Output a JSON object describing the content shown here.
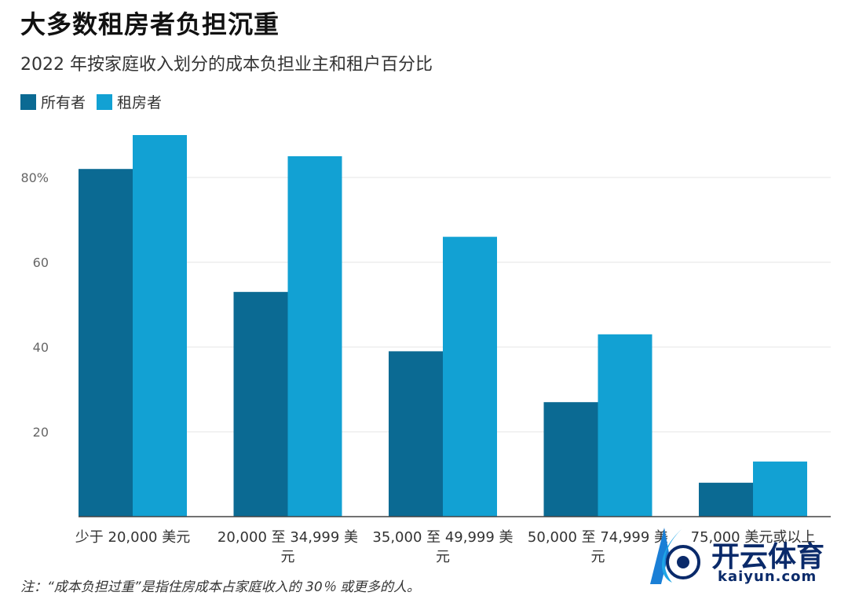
{
  "title": "大多数租房者负担沉重",
  "subtitle": "2022 年按家庭收入划分的成本负担业主和租户百分比",
  "note": "注：“成本负担过重”是指住房成本占家庭收入的 30％ 或更多的人。",
  "watermark": {
    "brand": "开云体育",
    "url": "kaiyun.com"
  },
  "colors": {
    "owners": "#0b6a93",
    "renters": "#12a1d3",
    "grid": "#e6e6e6",
    "axis": "#444444"
  },
  "chart_data": {
    "type": "bar",
    "categories": [
      [
        "少于 20,000 美元"
      ],
      [
        "20,000 至 34,999 美",
        "元"
      ],
      [
        "35,000 至 49,999 美",
        "元"
      ],
      [
        "50,000 至 74,999 美",
        "元"
      ],
      [
        "75,000 美元或以上"
      ]
    ],
    "series": [
      {
        "name": "所有者",
        "values": [
          82,
          53,
          39,
          27,
          8
        ]
      },
      {
        "name": "租房者",
        "values": [
          90,
          85,
          66,
          43,
          13
        ]
      }
    ],
    "ylim": [
      0,
      90
    ],
    "yticks": [
      {
        "value": 20,
        "label": "20"
      },
      {
        "value": 40,
        "label": "40"
      },
      {
        "value": 60,
        "label": "60"
      },
      {
        "value": 80,
        "label": "80%"
      }
    ],
    "grid": true,
    "legend": "top-left"
  }
}
